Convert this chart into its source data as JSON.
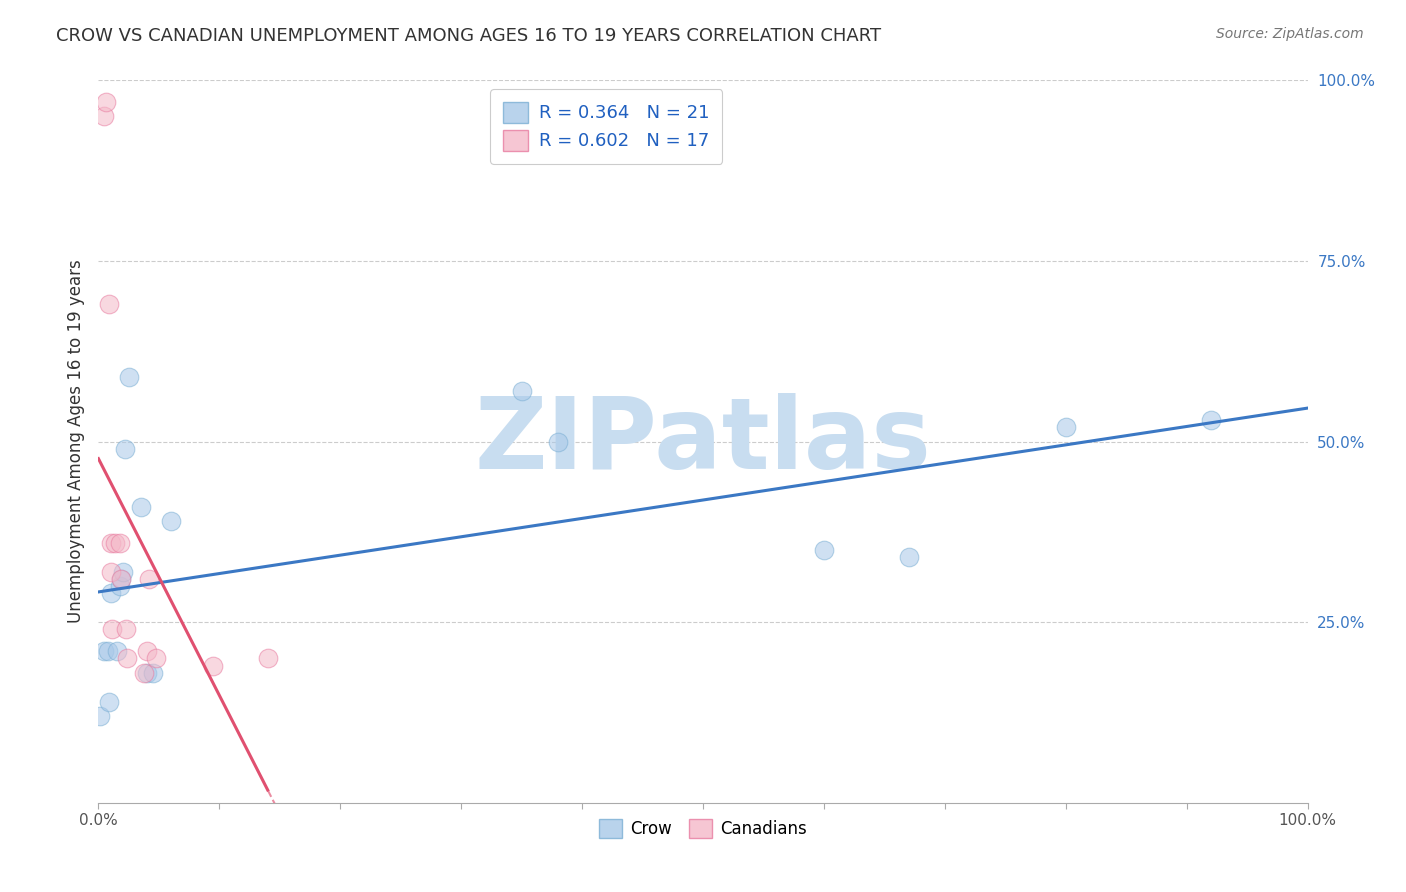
{
  "title": "CROW VS CANADIAN UNEMPLOYMENT AMONG AGES 16 TO 19 YEARS CORRELATION CHART",
  "source": "Source: ZipAtlas.com",
  "ylabel": "Unemployment Among Ages 16 to 19 years",
  "bg_color": "#ffffff",
  "grid_color": "#cccccc",
  "crow_color": "#a8c8e8",
  "crow_edge_color": "#7bafd4",
  "canadian_color": "#f4b8c8",
  "canadian_edge_color": "#e87ca0",
  "trendline_crow_color": "#3b78c4",
  "trendline_canadian_color": "#e05070",
  "legend_R_color": "#2060c0",
  "right_tick_color": "#3b78c4",
  "crow_R": 0.364,
  "crow_N": 21,
  "canadian_R": 0.602,
  "canadian_N": 17,
  "xlim": [
    0.0,
    1.0
  ],
  "ylim": [
    0.0,
    1.0
  ],
  "crow_x": [
    0.001,
    0.005,
    0.008,
    0.009,
    0.01,
    0.015,
    0.018,
    0.019,
    0.02,
    0.022,
    0.025,
    0.035,
    0.04,
    0.045,
    0.06,
    0.35,
    0.38,
    0.6,
    0.67,
    0.8,
    0.92
  ],
  "crow_y": [
    0.12,
    0.21,
    0.21,
    0.14,
    0.29,
    0.21,
    0.3,
    0.31,
    0.32,
    0.49,
    0.59,
    0.41,
    0.18,
    0.18,
    0.39,
    0.57,
    0.5,
    0.35,
    0.34,
    0.52,
    0.53
  ],
  "canadian_x": [
    0.005,
    0.006,
    0.009,
    0.01,
    0.01,
    0.011,
    0.014,
    0.018,
    0.019,
    0.023,
    0.024,
    0.038,
    0.04,
    0.042,
    0.048,
    0.095,
    0.14
  ],
  "canadian_y": [
    0.95,
    0.97,
    0.69,
    0.36,
    0.32,
    0.24,
    0.36,
    0.36,
    0.31,
    0.24,
    0.2,
    0.18,
    0.21,
    0.31,
    0.2,
    0.19,
    0.2
  ],
  "marker_size": 180,
  "alpha": 0.55,
  "watermark_text": "ZIPatlas",
  "watermark_color": "#c8ddf0",
  "watermark_fontsize": 72,
  "title_fontsize": 13,
  "axis_tick_fontsize": 11,
  "ylabel_fontsize": 12,
  "source_fontsize": 10,
  "legend_fontsize": 13
}
